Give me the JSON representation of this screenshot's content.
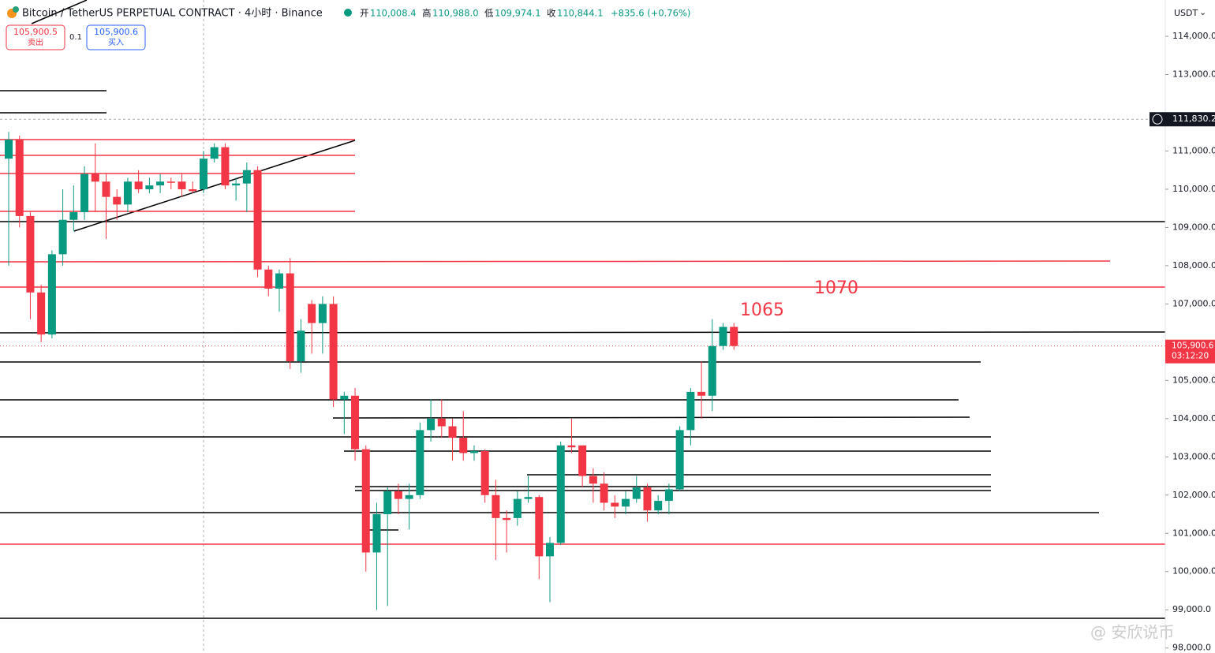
{
  "header": {
    "title": "Bitcoin / TetherUS PERPETUAL CONTRACT · 4小时 · Binance",
    "ohlc": [
      {
        "label": "开",
        "value": "110,008.4"
      },
      {
        "label": "高",
        "value": "110,988.0"
      },
      {
        "label": "低",
        "value": "109,974.1"
      },
      {
        "label": "收",
        "value": "110,844.1"
      }
    ],
    "change": "+835.6 (+0.76%)",
    "sell": {
      "price": "105,900.5",
      "label": "卖出"
    },
    "spread": "0.1",
    "buy": {
      "price": "105,900.6",
      "label": "买入"
    },
    "currency": "USDT",
    "watermark": "@ 安欣说币"
  },
  "chart_data": {
    "type": "candlestick",
    "categories": [
      null,
      null,
      null,
      null,
      null,
      null,
      null,
      null,
      null,
      null,
      null,
      null,
      null,
      null,
      null,
      null,
      null,
      null,
      null,
      null,
      null,
      null,
      null,
      null,
      null,
      null,
      null,
      null,
      null,
      null,
      null,
      null,
      null,
      null,
      null,
      null,
      null,
      null,
      null,
      null,
      null,
      null,
      null,
      null,
      null,
      null,
      null,
      null,
      null,
      null,
      null,
      null,
      null,
      null,
      null,
      null,
      null,
      null,
      null,
      null,
      null,
      null,
      null,
      null,
      null,
      null,
      null,
      null
    ],
    "open": [
      110800,
      111300,
      109300,
      107300,
      106200,
      108300,
      109200,
      109400,
      110400,
      110200,
      109800,
      109600,
      110200,
      110000,
      110100,
      110200,
      110200,
      110000,
      110000,
      110800,
      111100,
      110100,
      110150,
      110500,
      107900,
      107400,
      107800,
      105500,
      107000,
      106500,
      107000,
      104500,
      104600,
      103200,
      100500,
      101500,
      102100,
      101900,
      102000,
      103700,
      104000,
      103800,
      103500,
      103100,
      103150,
      102000,
      101400,
      101400,
      101900,
      101950,
      100400,
      100750,
      103300,
      103300,
      102500,
      102300,
      101800,
      101700,
      101900,
      102200,
      101600,
      101850,
      102150,
      103700,
      104700,
      104600,
      105900,
      106400
    ],
    "high": [
      111500,
      111400,
      109400,
      107500,
      108400,
      110000,
      110100,
      110600,
      111200,
      110400,
      110000,
      110300,
      110500,
      110300,
      110400,
      110300,
      110400,
      110200,
      111000,
      111200,
      111200,
      110300,
      110700,
      110600,
      108000,
      107900,
      108200,
      106600,
      107100,
      107200,
      107200,
      104700,
      104800,
      103300,
      101800,
      102200,
      102300,
      102300,
      103900,
      104500,
      104500,
      104000,
      104200,
      103300,
      103200,
      102400,
      101600,
      102100,
      102500,
      102000,
      100900,
      103400,
      104000,
      103300,
      102700,
      102600,
      102000,
      102100,
      102500,
      102300,
      102000,
      102300,
      103800,
      104800,
      105500,
      106600,
      106500,
      106500
    ],
    "low": [
      108000,
      109000,
      106600,
      106000,
      106100,
      108000,
      108900,
      109200,
      109400,
      108700,
      109200,
      109400,
      109900,
      109900,
      109900,
      110000,
      109800,
      109900,
      109900,
      110700,
      110000,
      109700,
      109400,
      107700,
      107200,
      106800,
      105300,
      105200,
      105700,
      105700,
      104300,
      103600,
      102900,
      100000,
      99000,
      99100,
      101500,
      101100,
      101900,
      103400,
      103500,
      102900,
      102900,
      102900,
      101800,
      100300,
      100500,
      101200,
      101800,
      99800,
      99200,
      100700,
      103100,
      102200,
      101800,
      101600,
      101400,
      101500,
      101800,
      101300,
      101500,
      101500,
      102100,
      103300,
      104000,
      104200,
      105800,
      105800
    ],
    "close": [
      111300,
      109300,
      107300,
      106200,
      108300,
      109200,
      109400,
      110400,
      110200,
      109800,
      109600,
      110200,
      110000,
      110100,
      110200,
      110180,
      110000,
      109950,
      110800,
      111100,
      110100,
      110150,
      110500,
      107900,
      107400,
      107800,
      105500,
      106300,
      106500,
      107000,
      104500,
      104600,
      103200,
      100500,
      101500,
      102100,
      101900,
      102000,
      103700,
      104000,
      103800,
      103500,
      103100,
      103150,
      102000,
      101400,
      101350,
      101900,
      101950,
      100400,
      100750,
      103300,
      103250,
      102500,
      102300,
      101800,
      101700,
      101900,
      102200,
      101600,
      101850,
      102150,
      103700,
      104700,
      104600,
      105900,
      106400,
      105900
    ],
    "up_color": "#089981",
    "down_color": "#f23645",
    "ylim": [
      97870,
      114950
    ],
    "yticks": [
      {
        "value": 114000,
        "label": "114,000.0"
      },
      {
        "value": 113000,
        "label": "113,000.0"
      },
      {
        "value": 111000,
        "label": "111,000.0"
      },
      {
        "value": 110000,
        "label": "110,000.0"
      },
      {
        "value": 109000,
        "label": "109,000.0"
      },
      {
        "value": 108000,
        "label": "108,000.0"
      },
      {
        "value": 107000,
        "label": "107,000.0"
      },
      {
        "value": 105000,
        "label": "105,000.0"
      },
      {
        "value": 104000,
        "label": "104,000.0"
      },
      {
        "value": 103000,
        "label": "103,000.0"
      },
      {
        "value": 102000,
        "label": "102,000.0"
      },
      {
        "value": 101000,
        "label": "101,000.0"
      },
      {
        "value": 100000,
        "label": "100,000.0"
      },
      {
        "value": 99000,
        "label": "99,000.0"
      },
      {
        "value": 98000,
        "label": "98,000.0"
      }
    ],
    "crosshair_price": {
      "value": 111830.2,
      "label": "111,830.2"
    },
    "last_price": {
      "value": 105900.6,
      "label": "105,900.6"
    },
    "countdown": "03:12:20",
    "annotations": [
      "1065",
      "1070"
    ]
  }
}
